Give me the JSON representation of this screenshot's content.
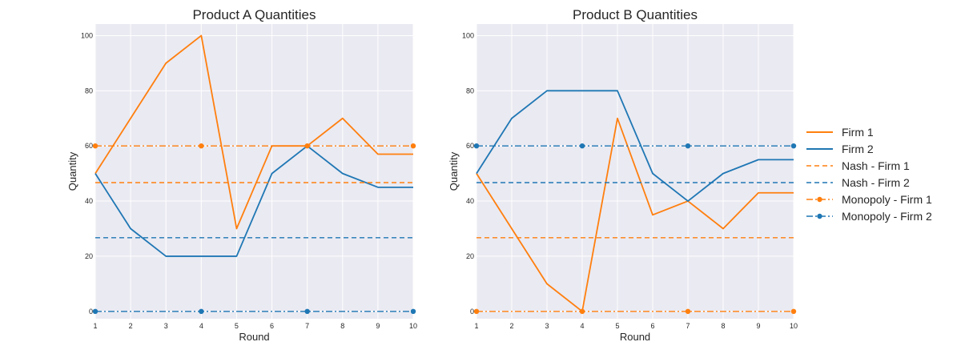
{
  "chart_data": [
    {
      "type": "line",
      "title": "Product A Quantities",
      "xlabel": "Round",
      "ylabel": "Quantity",
      "xlim": [
        1,
        10
      ],
      "ylim": [
        0,
        100
      ],
      "xticks": [
        1,
        2,
        3,
        4,
        5,
        6,
        7,
        8,
        9,
        10
      ],
      "yticks": [
        0,
        20,
        40,
        60,
        80,
        100
      ],
      "grid": true,
      "series": [
        {
          "name": "Firm 1",
          "color": "#ff7f0e",
          "style": "solid",
          "x": [
            1,
            2,
            3,
            4,
            5,
            6,
            7,
            8,
            9,
            10
          ],
          "values": [
            50,
            70,
            90,
            100,
            30,
            60,
            60,
            70,
            57,
            57
          ]
        },
        {
          "name": "Firm 2",
          "color": "#1f77b4",
          "style": "solid",
          "x": [
            1,
            2,
            3,
            4,
            5,
            6,
            7,
            8,
            9,
            10
          ],
          "values": [
            50,
            30,
            20,
            20,
            20,
            50,
            60,
            50,
            45,
            45
          ]
        },
        {
          "name": "Nash - Firm 1",
          "color": "#ff7f0e",
          "style": "dashed",
          "x": [
            1,
            10
          ],
          "values": [
            46.7,
            46.7
          ]
        },
        {
          "name": "Nash - Firm 2",
          "color": "#1f77b4",
          "style": "dashed",
          "x": [
            1,
            10
          ],
          "values": [
            26.7,
            26.7
          ]
        },
        {
          "name": "Monopoly - Firm 1",
          "color": "#ff7f0e",
          "style": "dashdot-marker",
          "x": [
            1,
            10
          ],
          "values": [
            60,
            60
          ],
          "marker_x": [
            1,
            4,
            7,
            10
          ]
        },
        {
          "name": "Monopoly - Firm 2",
          "color": "#1f77b4",
          "style": "dashdot-marker",
          "x": [
            1,
            10
          ],
          "values": [
            0,
            0
          ],
          "marker_x": [
            1,
            4,
            7,
            10
          ]
        }
      ]
    },
    {
      "type": "line",
      "title": "Product B Quantities",
      "xlabel": "Round",
      "ylabel": "Quantity",
      "xlim": [
        1,
        10
      ],
      "ylim": [
        0,
        100
      ],
      "xticks": [
        1,
        2,
        3,
        4,
        5,
        6,
        7,
        8,
        9,
        10
      ],
      "yticks": [
        0,
        20,
        40,
        60,
        80,
        100
      ],
      "grid": true,
      "series": [
        {
          "name": "Firm 1",
          "color": "#ff7f0e",
          "style": "solid",
          "x": [
            1,
            2,
            3,
            4,
            5,
            6,
            7,
            8,
            9,
            10
          ],
          "values": [
            50,
            30,
            10,
            0,
            70,
            35,
            40,
            30,
            43,
            43
          ]
        },
        {
          "name": "Firm 2",
          "color": "#1f77b4",
          "style": "solid",
          "x": [
            1,
            2,
            3,
            4,
            5,
            6,
            7,
            8,
            9,
            10
          ],
          "values": [
            50,
            70,
            80,
            80,
            80,
            50,
            40,
            50,
            55,
            55
          ]
        },
        {
          "name": "Nash - Firm 1",
          "color": "#ff7f0e",
          "style": "dashed",
          "x": [
            1,
            10
          ],
          "values": [
            26.7,
            26.7
          ]
        },
        {
          "name": "Nash - Firm 2",
          "color": "#1f77b4",
          "style": "dashed",
          "x": [
            1,
            10
          ],
          "values": [
            46.7,
            46.7
          ]
        },
        {
          "name": "Monopoly - Firm 1",
          "color": "#ff7f0e",
          "style": "dashdot-marker",
          "x": [
            1,
            10
          ],
          "values": [
            0,
            0
          ],
          "marker_x": [
            1,
            4,
            7,
            10
          ]
        },
        {
          "name": "Monopoly - Firm 2",
          "color": "#1f77b4",
          "style": "dashdot-marker",
          "x": [
            1,
            10
          ],
          "values": [
            60,
            60
          ],
          "marker_x": [
            1,
            4,
            7,
            10
          ]
        }
      ]
    }
  ],
  "legend": {
    "placement": "right",
    "entries": [
      {
        "label": "Firm 1",
        "color": "#ff7f0e",
        "style": "solid"
      },
      {
        "label": "Firm 2",
        "color": "#1f77b4",
        "style": "solid"
      },
      {
        "label": "Nash - Firm 1",
        "color": "#ff7f0e",
        "style": "dashed"
      },
      {
        "label": "Nash - Firm 2",
        "color": "#1f77b4",
        "style": "dashed"
      },
      {
        "label": "Monopoly - Firm 1",
        "color": "#ff7f0e",
        "style": "dashdot-marker"
      },
      {
        "label": "Monopoly - Firm 2",
        "color": "#1f77b4",
        "style": "dashdot-marker"
      }
    ]
  },
  "theme": {
    "plot_background": "#eaeaf2",
    "grid_color": "#ffffff",
    "text_color": "#262626"
  }
}
